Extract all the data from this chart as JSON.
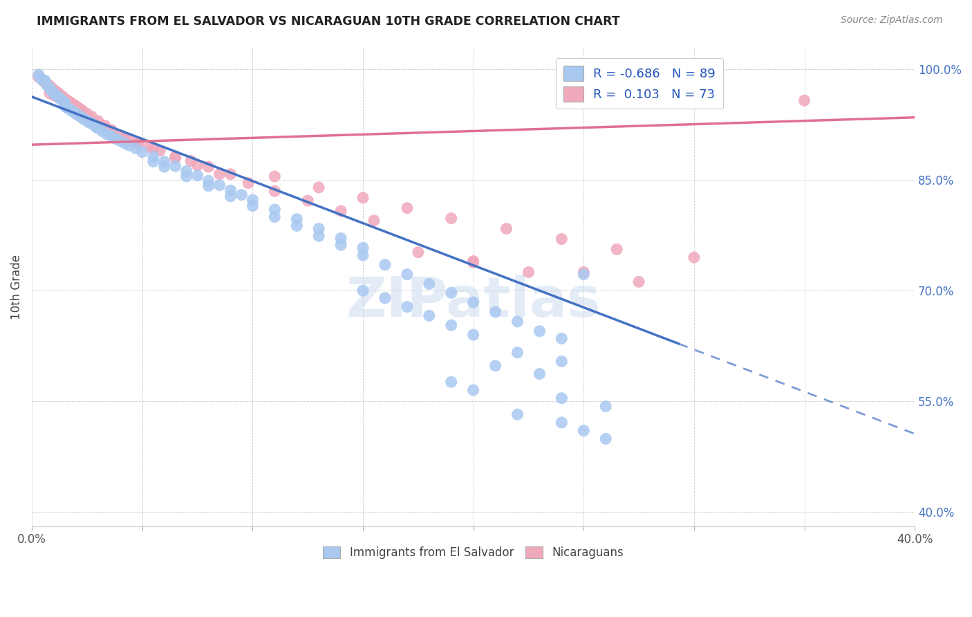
{
  "title": "IMMIGRANTS FROM EL SALVADOR VS NICARAGUAN 10TH GRADE CORRELATION CHART",
  "source": "Source: ZipAtlas.com",
  "ylabel": "10th Grade",
  "R_blue": -0.686,
  "N_blue": 89,
  "R_pink": 0.103,
  "N_pink": 73,
  "color_blue": "#A8C8F0",
  "color_pink": "#F0A8BB",
  "color_blue_line": "#4472C4",
  "color_pink_line": "#E07090",
  "legend_label_blue": "Immigrants from El Salvador",
  "legend_label_pink": "Nicaraguans",
  "watermark": "ZIPatlas",
  "xlim": [
    0.0,
    0.4
  ],
  "ylim": [
    0.38,
    1.03
  ],
  "x_ticks": [
    0.0,
    0.05,
    0.1,
    0.15,
    0.2,
    0.25,
    0.3,
    0.35,
    0.4
  ],
  "y_ticks": [
    0.4,
    0.55,
    0.7,
    0.85,
    1.0
  ],
  "y_tick_labels": [
    "40.0%",
    "55.0%",
    "70.0%",
    "85.0%",
    "100.0%"
  ],
  "blue_line_x0": 0.0,
  "blue_line_y0": 0.963,
  "blue_line_x1": 0.293,
  "blue_line_y1": 0.628,
  "blue_line_dash_x1": 0.4,
  "blue_line_dash_y1": 0.5,
  "pink_line_x0": 0.0,
  "pink_line_y0": 0.898,
  "pink_line_x1": 0.4,
  "pink_line_y1": 0.935,
  "blue_points": [
    [
      0.003,
      0.993
    ],
    [
      0.004,
      0.988
    ],
    [
      0.005,
      0.985
    ],
    [
      0.006,
      0.985
    ],
    [
      0.007,
      0.978
    ],
    [
      0.008,
      0.975
    ],
    [
      0.009,
      0.97
    ],
    [
      0.01,
      0.968
    ],
    [
      0.011,
      0.965
    ],
    [
      0.012,
      0.963
    ],
    [
      0.013,
      0.96
    ],
    [
      0.014,
      0.957
    ],
    [
      0.015,
      0.955
    ],
    [
      0.015,
      0.95
    ],
    [
      0.016,
      0.948
    ],
    [
      0.017,
      0.946
    ],
    [
      0.018,
      0.944
    ],
    [
      0.019,
      0.942
    ],
    [
      0.02,
      0.94
    ],
    [
      0.021,
      0.938
    ],
    [
      0.022,
      0.936
    ],
    [
      0.023,
      0.934
    ],
    [
      0.024,
      0.932
    ],
    [
      0.025,
      0.93
    ],
    [
      0.026,
      0.928
    ],
    [
      0.027,
      0.927
    ],
    [
      0.028,
      0.925
    ],
    [
      0.029,
      0.922
    ],
    [
      0.03,
      0.92
    ],
    [
      0.032,
      0.916
    ],
    [
      0.034,
      0.912
    ],
    [
      0.036,
      0.91
    ],
    [
      0.038,
      0.906
    ],
    [
      0.04,
      0.903
    ],
    [
      0.042,
      0.9
    ],
    [
      0.044,
      0.897
    ],
    [
      0.047,
      0.893
    ],
    [
      0.05,
      0.888
    ],
    [
      0.055,
      0.882
    ],
    [
      0.06,
      0.875
    ],
    [
      0.065,
      0.869
    ],
    [
      0.07,
      0.862
    ],
    [
      0.075,
      0.856
    ],
    [
      0.08,
      0.849
    ],
    [
      0.085,
      0.843
    ],
    [
      0.09,
      0.836
    ],
    [
      0.095,
      0.83
    ],
    [
      0.1,
      0.823
    ],
    [
      0.11,
      0.81
    ],
    [
      0.12,
      0.797
    ],
    [
      0.13,
      0.784
    ],
    [
      0.14,
      0.771
    ],
    [
      0.15,
      0.758
    ],
    [
      0.055,
      0.875
    ],
    [
      0.06,
      0.868
    ],
    [
      0.07,
      0.855
    ],
    [
      0.08,
      0.842
    ],
    [
      0.09,
      0.828
    ],
    [
      0.1,
      0.815
    ],
    [
      0.11,
      0.8
    ],
    [
      0.12,
      0.788
    ],
    [
      0.13,
      0.774
    ],
    [
      0.14,
      0.762
    ],
    [
      0.15,
      0.748
    ],
    [
      0.16,
      0.735
    ],
    [
      0.17,
      0.722
    ],
    [
      0.18,
      0.709
    ],
    [
      0.19,
      0.697
    ],
    [
      0.2,
      0.684
    ],
    [
      0.21,
      0.671
    ],
    [
      0.22,
      0.658
    ],
    [
      0.23,
      0.645
    ],
    [
      0.24,
      0.635
    ],
    [
      0.25,
      0.722
    ],
    [
      0.15,
      0.7
    ],
    [
      0.16,
      0.69
    ],
    [
      0.17,
      0.678
    ],
    [
      0.18,
      0.666
    ],
    [
      0.19,
      0.653
    ],
    [
      0.2,
      0.64
    ],
    [
      0.22,
      0.616
    ],
    [
      0.24,
      0.604
    ],
    [
      0.21,
      0.598
    ],
    [
      0.23,
      0.587
    ],
    [
      0.19,
      0.576
    ],
    [
      0.2,
      0.565
    ],
    [
      0.24,
      0.554
    ],
    [
      0.26,
      0.543
    ],
    [
      0.22,
      0.532
    ],
    [
      0.24,
      0.521
    ],
    [
      0.25,
      0.51
    ],
    [
      0.26,
      0.499
    ]
  ],
  "pink_points": [
    [
      0.003,
      0.99
    ],
    [
      0.005,
      0.985
    ],
    [
      0.006,
      0.982
    ],
    [
      0.007,
      0.98
    ],
    [
      0.008,
      0.978
    ],
    [
      0.009,
      0.975
    ],
    [
      0.01,
      0.972
    ],
    [
      0.011,
      0.97
    ],
    [
      0.012,
      0.968
    ],
    [
      0.013,
      0.965
    ],
    [
      0.014,
      0.963
    ],
    [
      0.015,
      0.96
    ],
    [
      0.016,
      0.958
    ],
    [
      0.017,
      0.956
    ],
    [
      0.018,
      0.954
    ],
    [
      0.019,
      0.952
    ],
    [
      0.02,
      0.95
    ],
    [
      0.021,
      0.948
    ],
    [
      0.022,
      0.946
    ],
    [
      0.023,
      0.944
    ],
    [
      0.025,
      0.94
    ],
    [
      0.027,
      0.936
    ],
    [
      0.03,
      0.93
    ],
    [
      0.033,
      0.924
    ],
    [
      0.036,
      0.918
    ],
    [
      0.04,
      0.91
    ],
    [
      0.044,
      0.905
    ],
    [
      0.048,
      0.9
    ],
    [
      0.053,
      0.895
    ],
    [
      0.058,
      0.89
    ],
    [
      0.065,
      0.882
    ],
    [
      0.072,
      0.876
    ],
    [
      0.08,
      0.868
    ],
    [
      0.09,
      0.858
    ],
    [
      0.008,
      0.968
    ],
    [
      0.01,
      0.965
    ],
    [
      0.012,
      0.962
    ],
    [
      0.014,
      0.958
    ],
    [
      0.016,
      0.954
    ],
    [
      0.018,
      0.95
    ],
    [
      0.02,
      0.946
    ],
    [
      0.022,
      0.942
    ],
    [
      0.025,
      0.936
    ],
    [
      0.028,
      0.93
    ],
    [
      0.032,
      0.922
    ],
    [
      0.037,
      0.914
    ],
    [
      0.042,
      0.907
    ],
    [
      0.048,
      0.9
    ],
    [
      0.055,
      0.892
    ],
    [
      0.065,
      0.88
    ],
    [
      0.075,
      0.87
    ],
    [
      0.085,
      0.858
    ],
    [
      0.098,
      0.846
    ],
    [
      0.11,
      0.835
    ],
    [
      0.125,
      0.822
    ],
    [
      0.14,
      0.808
    ],
    [
      0.155,
      0.795
    ],
    [
      0.11,
      0.855
    ],
    [
      0.13,
      0.84
    ],
    [
      0.15,
      0.826
    ],
    [
      0.17,
      0.812
    ],
    [
      0.19,
      0.798
    ],
    [
      0.215,
      0.784
    ],
    [
      0.24,
      0.77
    ],
    [
      0.265,
      0.756
    ],
    [
      0.3,
      0.745
    ],
    [
      0.35,
      0.958
    ],
    [
      0.25,
      0.725
    ],
    [
      0.275,
      0.712
    ],
    [
      0.2,
      0.738
    ],
    [
      0.225,
      0.725
    ],
    [
      0.175,
      0.752
    ],
    [
      0.2,
      0.74
    ]
  ]
}
